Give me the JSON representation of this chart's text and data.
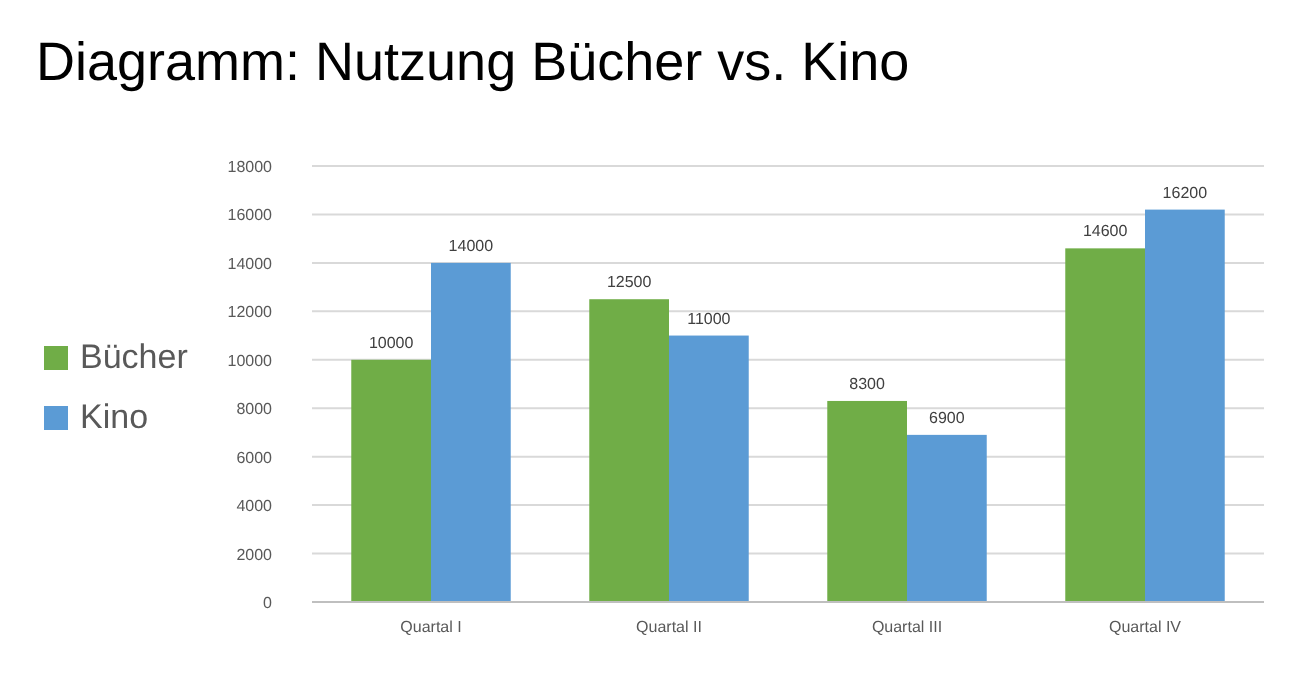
{
  "chart_data": {
    "type": "bar",
    "title": "Diagramm: Nutzung Bücher vs. Kino",
    "categories": [
      "Quartal I",
      "Quartal II",
      "Quartal III",
      "Quartal IV"
    ],
    "series": [
      {
        "name": "Bücher",
        "color": "#70ad47",
        "values": [
          10000,
          12500,
          8300,
          14600
        ]
      },
      {
        "name": "Kino",
        "color": "#5b9bd5",
        "values": [
          14000,
          11000,
          6900,
          16200
        ]
      }
    ],
    "ylim": [
      0,
      18000
    ],
    "yticks": [
      0,
      2000,
      4000,
      6000,
      8000,
      10000,
      12000,
      14000,
      16000,
      18000
    ],
    "grid": "y",
    "legend": "left",
    "data_labels": true
  }
}
